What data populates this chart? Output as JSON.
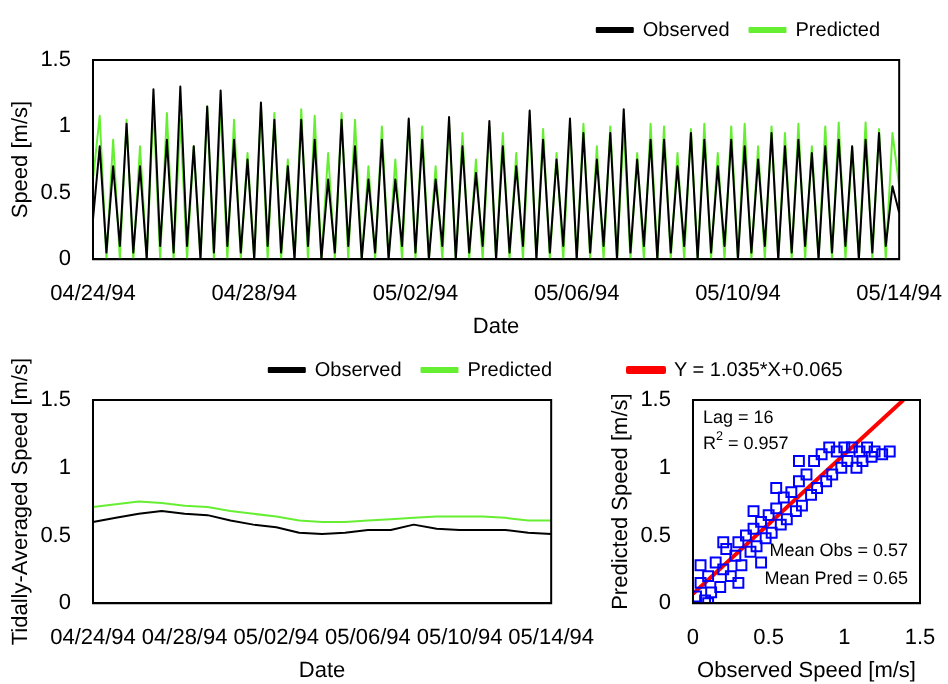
{
  "chart_data": [
    {
      "type": "line",
      "xlabel": "Date",
      "ylabel": "Speed [m/s]",
      "legend": "top right",
      "x": [
        "1994-04-24T00:00",
        "1994-04-24T04:00",
        "1994-04-24T08:00",
        "1994-04-24T12:00",
        "1994-04-24T16:00",
        "1994-04-24T20:00",
        "1994-04-25T00:00",
        "1994-04-25T04:00",
        "1994-04-25T08:00",
        "1994-04-25T12:00",
        "1994-04-25T16:00",
        "1994-04-25T20:00",
        "1994-04-26T00:00",
        "1994-04-26T04:00",
        "1994-04-26T08:00",
        "1994-04-26T12:00",
        "1994-04-26T16:00",
        "1994-04-26T20:00",
        "1994-04-27T00:00",
        "1994-04-27T04:00",
        "1994-04-27T08:00",
        "1994-04-27T12:00",
        "1994-04-27T16:00",
        "1994-04-27T20:00",
        "1994-04-28T00:00",
        "1994-04-28T04:00",
        "1994-04-28T08:00",
        "1994-04-28T12:00",
        "1994-04-28T16:00",
        "1994-04-28T20:00",
        "1994-04-29T00:00",
        "1994-04-29T04:00",
        "1994-04-29T08:00",
        "1994-04-29T12:00",
        "1994-04-29T16:00",
        "1994-04-29T20:00",
        "1994-04-30T00:00",
        "1994-04-30T04:00",
        "1994-04-30T08:00",
        "1994-04-30T12:00",
        "1994-04-30T16:00",
        "1994-04-30T20:00",
        "1994-05-01T00:00",
        "1994-05-01T04:00",
        "1994-05-01T08:00",
        "1994-05-01T12:00",
        "1994-05-01T16:00",
        "1994-05-01T20:00",
        "1994-05-02T00:00",
        "1994-05-02T04:00",
        "1994-05-02T08:00",
        "1994-05-02T12:00",
        "1994-05-02T16:00",
        "1994-05-02T20:00",
        "1994-05-03T00:00",
        "1994-05-03T04:00",
        "1994-05-03T08:00",
        "1994-05-03T12:00",
        "1994-05-03T16:00",
        "1994-05-03T20:00",
        "1994-05-04T00:00",
        "1994-05-04T04:00",
        "1994-05-04T08:00",
        "1994-05-04T12:00",
        "1994-05-04T16:00",
        "1994-05-04T20:00",
        "1994-05-05T00:00",
        "1994-05-05T04:00",
        "1994-05-05T08:00",
        "1994-05-05T12:00",
        "1994-05-05T16:00",
        "1994-05-05T20:00",
        "1994-05-06T00:00",
        "1994-05-06T04:00",
        "1994-05-06T08:00",
        "1994-05-06T12:00",
        "1994-05-06T16:00",
        "1994-05-06T20:00",
        "1994-05-07T00:00",
        "1994-05-07T04:00",
        "1994-05-07T08:00",
        "1994-05-07T12:00",
        "1994-05-07T16:00",
        "1994-05-07T20:00",
        "1994-05-08T00:00",
        "1994-05-08T04:00",
        "1994-05-08T08:00",
        "1994-05-08T12:00",
        "1994-05-08T16:00",
        "1994-05-08T20:00",
        "1994-05-09T00:00",
        "1994-05-09T04:00",
        "1994-05-09T08:00",
        "1994-05-09T12:00",
        "1994-05-09T16:00",
        "1994-05-09T20:00",
        "1994-05-10T00:00",
        "1994-05-10T04:00",
        "1994-05-10T08:00",
        "1994-05-10T12:00",
        "1994-05-10T16:00",
        "1994-05-10T20:00",
        "1994-05-11T00:00",
        "1994-05-11T04:00",
        "1994-05-11T08:00",
        "1994-05-11T12:00",
        "1994-05-11T16:00",
        "1994-05-11T20:00",
        "1994-05-12T00:00",
        "1994-05-12T04:00",
        "1994-05-12T08:00",
        "1994-05-12T12:00",
        "1994-05-12T16:00",
        "1994-05-12T20:00",
        "1994-05-13T00:00",
        "1994-05-13T04:00",
        "1994-05-13T08:00",
        "1994-05-13T12:00",
        "1994-05-13T16:00",
        "1994-05-13T20:00",
        "1994-05-14T00:00"
      ],
      "series": [
        {
          "name": "Observed",
          "color": "#000000",
          "values": [
            0.3,
            0.85,
            0.05,
            0.7,
            0.1,
            1.02,
            0.05,
            0.7,
            0,
            1.28,
            0.1,
            0.9,
            0.05,
            1.3,
            0.1,
            0.85,
            0,
            1.15,
            0.05,
            1.27,
            0.1,
            0.9,
            0.05,
            0.75,
            0,
            1.18,
            0.1,
            1.05,
            0.05,
            0.7,
            0,
            1.05,
            0.1,
            0.9,
            0,
            0.6,
            0.05,
            1.05,
            0.1,
            0.85,
            0,
            0.6,
            0.05,
            0.9,
            0,
            0.6,
            0.1,
            1.06,
            0.05,
            0.9,
            0,
            0.6,
            0.1,
            1.07,
            0,
            0.85,
            0.05,
            0.65,
            0.1,
            1.04,
            0,
            0.85,
            0.05,
            0.7,
            0.1,
            1.12,
            0,
            0.9,
            0.05,
            0.75,
            0.1,
            1.06,
            0,
            0.95,
            0.05,
            0.75,
            0.1,
            0.95,
            0,
            1.13,
            0.05,
            0.75,
            0.1,
            0.9,
            0,
            0.9,
            0.05,
            0.7,
            0.1,
            0.95,
            0,
            0.9,
            0.05,
            0.7,
            0.1,
            0.9,
            0,
            0.85,
            0.05,
            0.75,
            0.1,
            0.95,
            0,
            0.85,
            0.05,
            0.9,
            0.1,
            0.8,
            0,
            0.85,
            0.05,
            0.9,
            0.1,
            0.85,
            0,
            0.9,
            0.05,
            0.95,
            0.1,
            0.55,
            0.35
          ]
        },
        {
          "name": "Predicted",
          "color": "#66ee33",
          "values": [
            0.6,
            1.08,
            0,
            0.9,
            0,
            1.05,
            0,
            0.85,
            0,
            1.15,
            0,
            1.1,
            0,
            1.05,
            0,
            0.85,
            0,
            1.15,
            0,
            1.15,
            0,
            1.05,
            0,
            0.8,
            0,
            1.15,
            0,
            1.1,
            0,
            0.75,
            0,
            1.13,
            0,
            1.08,
            0,
            0.8,
            0,
            1.1,
            0,
            1.05,
            0,
            0.7,
            0,
            1.0,
            0,
            0.75,
            0,
            1.05,
            0,
            1.0,
            0,
            0.7,
            0,
            1.02,
            0,
            0.95,
            0,
            0.75,
            0,
            1.0,
            0,
            0.95,
            0,
            0.8,
            0,
            1.05,
            0,
            0.98,
            0,
            0.8,
            0,
            1.0,
            0,
            1.02,
            0,
            0.85,
            0,
            1.0,
            0,
            0.98,
            0,
            0.8,
            0,
            1.02,
            0,
            1.0,
            0,
            0.8,
            0,
            0.98,
            0,
            1.02,
            0,
            0.8,
            0,
            1.0,
            0,
            1.02,
            0,
            0.85,
            0,
            1.0,
            0,
            0.95,
            0,
            1.02,
            0,
            0.85,
            0,
            1.0,
            0,
            1.03,
            0,
            0.85,
            0,
            1.03,
            0,
            0.98,
            0,
            0.95,
            0.55
          ]
        }
      ],
      "xlim": [
        "1994-04-24",
        "1994-05-14"
      ],
      "xticks": [
        {
          "value": "1994-04-24",
          "label": "04/24/94"
        },
        {
          "value": "1994-04-28",
          "label": "04/28/94"
        },
        {
          "value": "1994-05-02",
          "label": "05/02/94"
        },
        {
          "value": "1994-05-06",
          "label": "05/06/94"
        },
        {
          "value": "1994-05-10",
          "label": "05/10/94"
        },
        {
          "value": "1994-05-14",
          "label": "05/14/94"
        }
      ],
      "ylim": [
        0,
        1.5
      ],
      "yticks": [
        0,
        0.5,
        1,
        1.5
      ]
    },
    {
      "type": "line",
      "xlabel": "Date",
      "ylabel": "Tidally-Averaged Speed [m/s]",
      "legend": "top right",
      "x": [
        "1994-04-24",
        "1994-04-25",
        "1994-04-26",
        "1994-04-27",
        "1994-04-28",
        "1994-04-29",
        "1994-04-30",
        "1994-05-01",
        "1994-05-02",
        "1994-05-03",
        "1994-05-04",
        "1994-05-05",
        "1994-05-06",
        "1994-05-07",
        "1994-05-08",
        "1994-05-09",
        "1994-05-10",
        "1994-05-11",
        "1994-05-12",
        "1994-05-13",
        "1994-05-14"
      ],
      "series": [
        {
          "name": "Observed",
          "color": "#000000",
          "values": [
            0.6,
            0.63,
            0.66,
            0.68,
            0.66,
            0.65,
            0.61,
            0.58,
            0.56,
            0.52,
            0.51,
            0.52,
            0.54,
            0.54,
            0.58,
            0.55,
            0.54,
            0.54,
            0.54,
            0.52,
            0.51
          ]
        },
        {
          "name": "Predicted",
          "color": "#66ee33",
          "values": [
            0.71,
            0.73,
            0.75,
            0.74,
            0.72,
            0.71,
            0.68,
            0.66,
            0.64,
            0.61,
            0.6,
            0.6,
            0.61,
            0.62,
            0.63,
            0.64,
            0.64,
            0.64,
            0.63,
            0.61,
            0.61
          ]
        }
      ],
      "xlim": [
        "1994-04-24",
        "1994-05-14"
      ],
      "xticks": [
        {
          "value": "1994-04-24",
          "label": "04/24/94"
        },
        {
          "value": "1994-04-28",
          "label": "04/28/94"
        },
        {
          "value": "1994-05-02",
          "label": "05/02/94"
        },
        {
          "value": "1994-05-06",
          "label": "05/06/94"
        },
        {
          "value": "1994-05-10",
          "label": "05/10/94"
        },
        {
          "value": "1994-05-14",
          "label": "05/14/94"
        }
      ],
      "ylim": [
        0,
        1.5
      ],
      "yticks": [
        0,
        0.5,
        1,
        1.5
      ]
    },
    {
      "type": "scatter",
      "xlabel": "Observed Speed [m/s]",
      "ylabel": "Predicted Speed [m/s]",
      "legend": "top left",
      "series": [
        {
          "type": "scatter",
          "marker": "square",
          "color": "#0000ff",
          "x": [
            0.02,
            0.05,
            0.08,
            0.1,
            0.12,
            0.15,
            0.18,
            0.2,
            0.22,
            0.25,
            0.28,
            0.3,
            0.32,
            0.35,
            0.38,
            0.4,
            0.42,
            0.45,
            0.48,
            0.5,
            0.52,
            0.55,
            0.58,
            0.6,
            0.62,
            0.65,
            0.68,
            0.7,
            0.72,
            0.75,
            0.78,
            0.8,
            0.82,
            0.85,
            0.88,
            0.9,
            0.92,
            0.95,
            0.98,
            1.0,
            1.02,
            1.05,
            1.08,
            1.1,
            1.12,
            1.15,
            1.18,
            1.2,
            1.25,
            1.3,
            0.1,
            0.3,
            0.45,
            0.05,
            0.2,
            0.4,
            0.55,
            0.7
          ],
          "values": [
            0.05,
            0.15,
            0.02,
            0.2,
            0.08,
            0.3,
            0.12,
            0.25,
            0.4,
            0.2,
            0.35,
            0.45,
            0.28,
            0.5,
            0.38,
            0.55,
            0.42,
            0.6,
            0.48,
            0.65,
            0.52,
            0.7,
            0.58,
            0.78,
            0.62,
            0.82,
            0.68,
            0.9,
            0.72,
            0.95,
            0.8,
            1.05,
            0.85,
            1.1,
            0.9,
            1.15,
            0.95,
            1.12,
            1.0,
            1.15,
            1.05,
            1.15,
            1.0,
            1.12,
            1.05,
            1.15,
            1.08,
            1.12,
            1.1,
            1.12,
            0.0,
            0.15,
            0.3,
            0.28,
            0.45,
            0.68,
            0.85,
            1.05
          ]
        },
        {
          "type": "line",
          "name": "Y = 1.035*X+0.065",
          "color": "#ff0000",
          "x": [
            0,
            1.39
          ],
          "values": [
            0.07,
            1.5
          ]
        }
      ],
      "xlim": [
        0,
        1.5
      ],
      "xticks": [
        0,
        0.5,
        1,
        1.5
      ],
      "ylim": [
        0,
        1.5
      ],
      "yticks": [
        0,
        0.5,
        1,
        1.5
      ],
      "annotations": [
        "Lag = 16",
        "R$^{2}$ = 0.957",
        "Mean Obs = 0.57",
        "Mean Pred = 0.65"
      ]
    }
  ]
}
